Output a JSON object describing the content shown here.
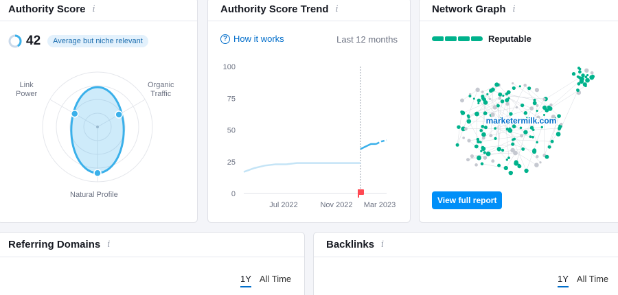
{
  "colors": {
    "accent": "#006dca",
    "score_blue": "#3ab0ea",
    "trend_light": "#c4e4f6",
    "trend_dark": "#3ab0ea",
    "network_green": "#00b28c",
    "network_gray": "#c5c8d0",
    "marker_red": "#ff4953"
  },
  "authority_score": {
    "title": "Authority Score",
    "info_icon": "i",
    "score": "42",
    "badge": "Average but niche relevant",
    "axis_labels": {
      "link_power": "Link\nPower",
      "organic_traffic": "Organic\nTraffic",
      "natural_profile": "Natural Profile"
    },
    "radar": {
      "link_power": 0.48,
      "organic_traffic": 0.45,
      "natural_profile": 0.84
    }
  },
  "trend": {
    "title": "Authority Score Trend",
    "info_icon": "i",
    "how_it_works": "How it works",
    "period": "Last 12 months",
    "chart_data": {
      "type": "line",
      "ylim": [
        0,
        100
      ],
      "y_ticks": [
        "100",
        "75",
        "50",
        "25",
        "0"
      ],
      "x_ticks": [
        "Jul 2022",
        "Nov 2022",
        "Mar 2023"
      ],
      "series": [
        {
          "values": [
            17,
            20,
            22,
            23,
            23,
            24,
            24,
            24,
            24,
            24,
            24,
            24
          ]
        },
        {
          "values": [
            35,
            37,
            39,
            39,
            41,
            42
          ]
        }
      ]
    }
  },
  "network": {
    "title": "Network Graph",
    "info_icon": "i",
    "reputation": "Reputable",
    "domain": "marketermilk.com",
    "button": "View full report"
  },
  "referring_domains": {
    "title": "Referring Domains",
    "info_icon": "i",
    "tabs": [
      "1Y",
      "All Time"
    ]
  },
  "backlinks": {
    "title": "Backlinks",
    "info_icon": "i",
    "tabs": [
      "1Y",
      "All Time"
    ]
  }
}
